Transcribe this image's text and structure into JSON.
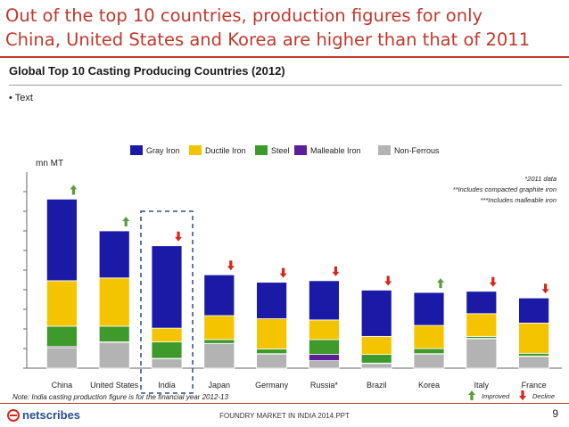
{
  "slide": {
    "headline_line1": "Out of the top 10 countries, production figures for only",
    "headline_line2": "China, United States and Korea are higher than that of 2011",
    "subtitle": "Global Top 10 Casting Producing Countries (2012)",
    "bullet": "• Text",
    "footer_center": "FOUNDRY MARKET IN INDIA 2014.PPT",
    "page_number": "9",
    "logo_text": "netscribes"
  },
  "colors": {
    "accent": "#c0392b",
    "gray_iron": "#1a1aa6",
    "ductile_iron": "#f5c400",
    "steel": "#3d9a2b",
    "malleable_iron": "#5b1f99",
    "non_ferrous": "#b3b3b3",
    "arrow_up": "#5a9e3a",
    "arrow_down": "#d9261c",
    "highlight_box": "#2b4d8c"
  },
  "chart_data": {
    "type": "bar",
    "stacked": true,
    "ylabel": "mn MT",
    "ylim": [
      0,
      50
    ],
    "yticks": [
      0,
      5,
      10,
      15,
      20,
      25,
      30,
      35,
      40,
      45
    ],
    "ytick_labels_shown": false,
    "legend_position": "top",
    "categories": [
      "China",
      "United States",
      "India",
      "Japan",
      "Germany",
      "Russia*",
      "Brazil",
      "Korea",
      "Italy",
      "France"
    ],
    "series": [
      {
        "name": "Non-Ferrous",
        "color_key": "non_ferrous",
        "values": [
          5.2,
          6.6,
          2.4,
          6.3,
          3.6,
          1.9,
          1.2,
          3.6,
          7.5,
          3.0
        ]
      },
      {
        "name": "Malleable Iron",
        "color_key": "malleable_iron",
        "values": [
          0.3,
          0.1,
          0.1,
          0.0,
          0.1,
          1.6,
          0.1,
          0.1,
          0.1,
          0.1
        ]
      },
      {
        "name": "Steel",
        "color_key": "steel",
        "values": [
          5.2,
          4.0,
          4.2,
          1.0,
          1.2,
          3.8,
          2.2,
          1.3,
          0.5,
          0.7
        ]
      },
      {
        "name": "Ductile Iron",
        "color_key": "ductile_iron",
        "values": [
          11.6,
          12.3,
          3.5,
          6.1,
          7.7,
          5.0,
          4.6,
          5.9,
          5.8,
          7.7
        ]
      },
      {
        "name": "Gray Iron",
        "color_key": "gray_iron",
        "values": [
          20.8,
          12.0,
          21.0,
          10.4,
          9.3,
          10.0,
          11.8,
          8.4,
          5.7,
          6.4
        ]
      }
    ],
    "trend_vs_2011": [
      "up",
      "up",
      "down",
      "down",
      "down",
      "down",
      "down",
      "up",
      "down",
      "down"
    ],
    "highlighted_category": "India",
    "footnotes": [
      "*2011 data",
      "**Includes compacted graphite iron",
      "***Includes malleable iron"
    ],
    "note": "Note: India casting production figure is for the financial year 2012-13",
    "arrow_legend": {
      "improved": "Improved",
      "decline": "Decline"
    }
  }
}
